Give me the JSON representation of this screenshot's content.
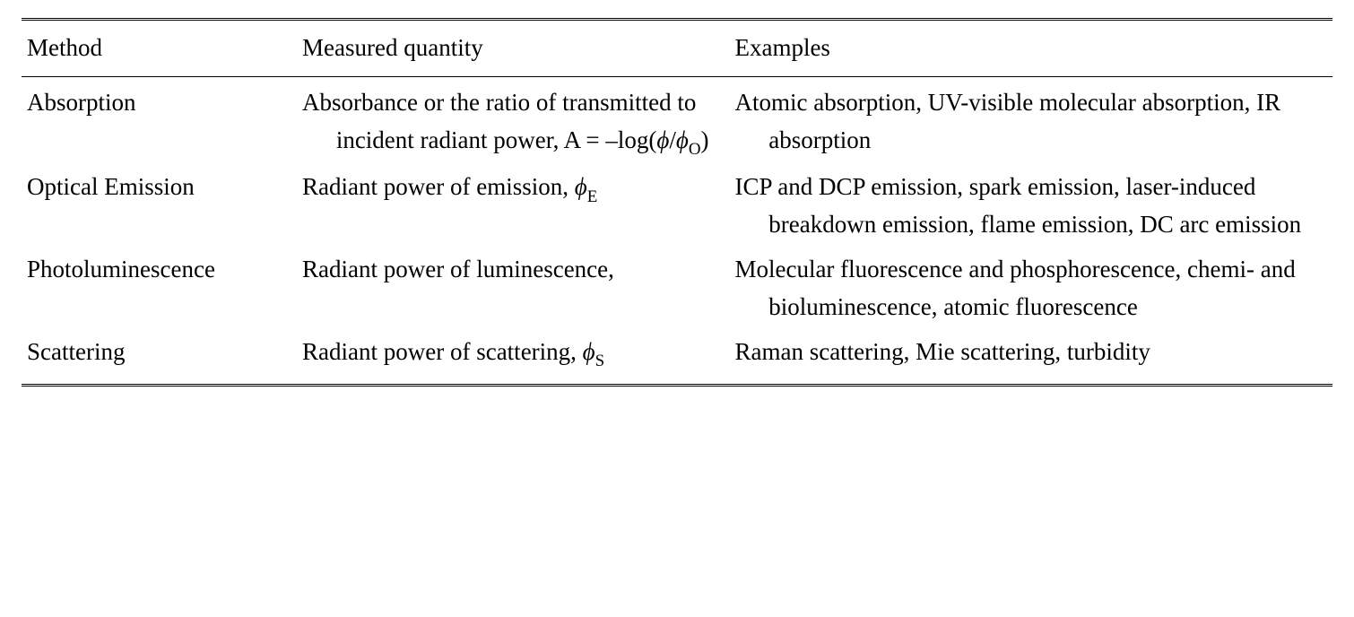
{
  "table": {
    "columns": [
      "Method",
      "Measured quantity",
      "Examples"
    ],
    "column_widths_pct": [
      21,
      33,
      46
    ],
    "border_color": "#000000",
    "header_top_border": "double 3px",
    "header_bottom_border": "solid 1px",
    "table_bottom_border": "double 3px",
    "font_family": "Times New Roman",
    "font_size_pt": 20,
    "text_color": "#000000",
    "background_color": "#ffffff",
    "hanging_indent_em": 1.4,
    "line_height": 1.55,
    "rows": [
      {
        "method": "Absorption",
        "measured_html": "Absorbance or the ratio of transmitted to incident radiant power, A = –log(<span class=\"phi\">ϕ</span>/<span class=\"phi\">ϕ</span><span class=\"sub\">O</span>)",
        "examples_html": "Atomic absorption, UV-visible molecular absorption, IR absorption"
      },
      {
        "method": "Optical Emission",
        "measured_html": "Radiant power of emission, <span class=\"phi\">ϕ</span><span class=\"sub\">E</span>",
        "examples_html": "ICP and DCP emission, spark emission, laser-induced breakdown emission, flame emission, DC arc emission"
      },
      {
        "method": "Photoluminescence",
        "measured_html": "Radiant power of luminescence,",
        "examples_html": "Molecular fluorescence and phosphorescence, chemi- and bioluminescence, atomic fluorescence"
      },
      {
        "method": "Scattering",
        "measured_html": "Radiant power of scattering, <span class=\"phi\">ϕ</span><span class=\"sub\">S</span>",
        "examples_html": "Raman scattering, Mie scattering, turbidity"
      }
    ]
  }
}
